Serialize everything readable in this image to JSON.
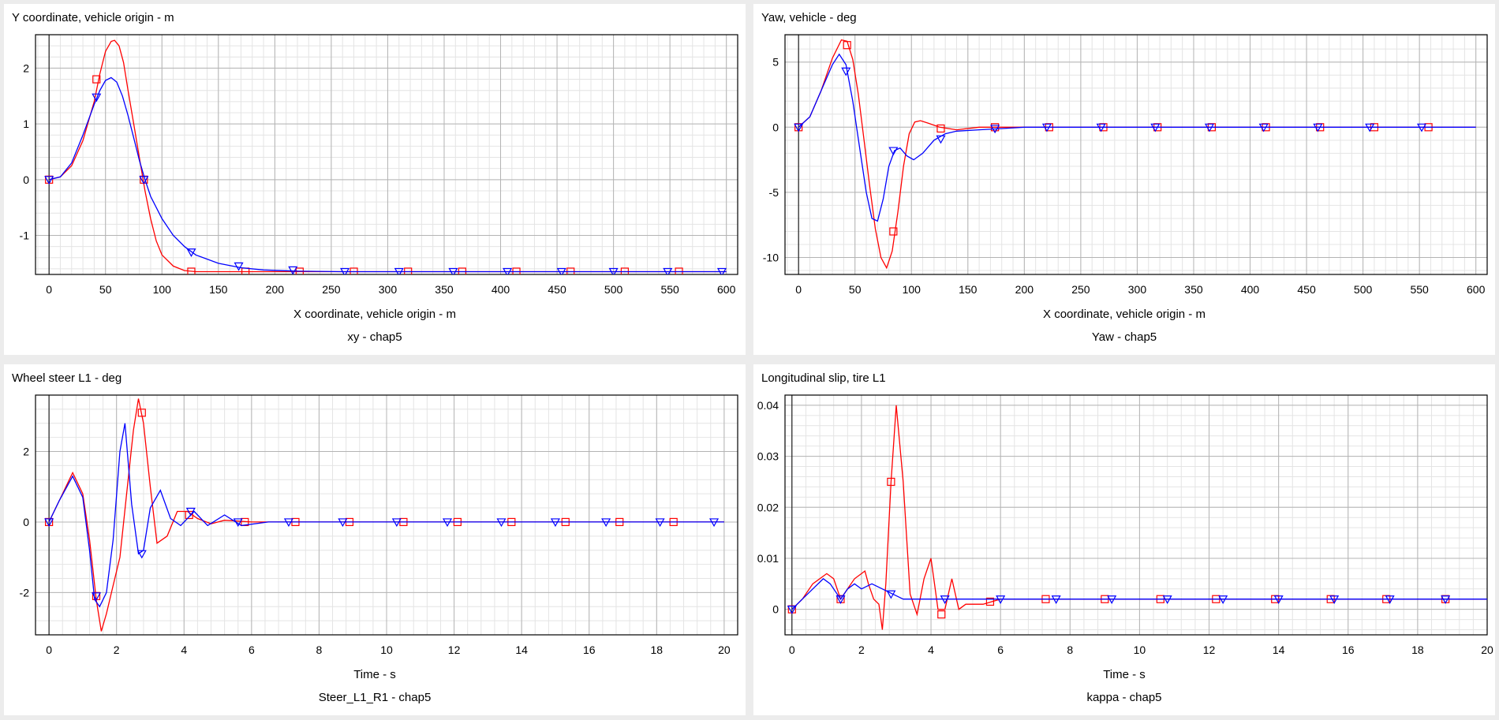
{
  "chart_data": [
    {
      "type": "line",
      "title": "Y coordinate, vehicle origin - m",
      "xlabel": "X coordinate, vehicle origin - m",
      "dataset_label": "xy - chap5",
      "xlim": [
        -12,
        610
      ],
      "ylim": [
        -1.7,
        2.6
      ],
      "xticks": [
        0,
        50,
        100,
        150,
        200,
        250,
        300,
        350,
        400,
        450,
        500,
        550,
        600
      ],
      "yticks": [
        -1,
        0,
        1,
        2
      ],
      "xminor": 10,
      "yminor": 0.2,
      "series": [
        {
          "name": "red",
          "color": "#ff0000",
          "marker": "square",
          "x": [
            0,
            10,
            20,
            30,
            40,
            45,
            50,
            55,
            58,
            62,
            66,
            70,
            75,
            80,
            85,
            90,
            95,
            100,
            110,
            120,
            130,
            150,
            200,
            300,
            400,
            500,
            600
          ],
          "y": [
            0,
            0.05,
            0.25,
            0.7,
            1.4,
            1.9,
            2.3,
            2.48,
            2.5,
            2.4,
            2.1,
            1.6,
            1.0,
            0.4,
            -0.2,
            -0.7,
            -1.1,
            -1.35,
            -1.55,
            -1.63,
            -1.65,
            -1.65,
            -1.65,
            -1.65,
            -1.65,
            -1.65,
            -1.65
          ],
          "markers_x": [
            0,
            42,
            84,
            126,
            174,
            222,
            270,
            318,
            366,
            414,
            462,
            510,
            558
          ],
          "markers_y": [
            0,
            1.8,
            0,
            -1.65,
            -1.65,
            -1.65,
            -1.65,
            -1.65,
            -1.65,
            -1.65,
            -1.65,
            -1.65,
            -1.65
          ]
        },
        {
          "name": "blue",
          "color": "#0000ff",
          "marker": "triangle-down",
          "x": [
            0,
            10,
            20,
            30,
            40,
            45,
            50,
            55,
            60,
            65,
            70,
            75,
            80,
            85,
            90,
            100,
            110,
            120,
            130,
            150,
            170,
            190,
            220,
            260,
            300,
            400,
            500,
            600
          ],
          "y": [
            0,
            0.05,
            0.3,
            0.8,
            1.35,
            1.6,
            1.78,
            1.83,
            1.75,
            1.5,
            1.15,
            0.75,
            0.35,
            0,
            -0.3,
            -0.7,
            -1.0,
            -1.2,
            -1.35,
            -1.5,
            -1.58,
            -1.62,
            -1.64,
            -1.65,
            -1.65,
            -1.65,
            -1.65,
            -1.65
          ],
          "markers_x": [
            0,
            42,
            84,
            126,
            168,
            216,
            262,
            310,
            358,
            406,
            454,
            500,
            548,
            596
          ],
          "markers_y": [
            0,
            1.48,
            0,
            -1.3,
            -1.55,
            -1.62,
            -1.65,
            -1.65,
            -1.65,
            -1.65,
            -1.65,
            -1.65,
            -1.65,
            -1.65
          ]
        }
      ]
    },
    {
      "type": "line",
      "title": "Yaw, vehicle - deg",
      "xlabel": "X coordinate, vehicle origin - m",
      "dataset_label": "Yaw - chap5",
      "xlim": [
        -12,
        610
      ],
      "ylim": [
        -11.3,
        7.1
      ],
      "xticks": [
        0,
        50,
        100,
        150,
        200,
        250,
        300,
        350,
        400,
        450,
        500,
        550,
        600
      ],
      "yticks": [
        -10,
        -5,
        0,
        5
      ],
      "xminor": 10,
      "yminor": 1,
      "series": [
        {
          "name": "red",
          "color": "#ff0000",
          "marker": "square",
          "x": [
            0,
            10,
            20,
            30,
            38,
            43,
            48,
            53,
            58,
            63,
            68,
            73,
            78,
            83,
            88,
            93,
            98,
            103,
            108,
            115,
            125,
            140,
            160,
            200,
            300,
            400,
            500,
            600
          ],
          "y": [
            0,
            0.8,
            2.8,
            5.3,
            6.7,
            6.6,
            5.2,
            2.5,
            -1.0,
            -4.5,
            -7.8,
            -10.0,
            -10.8,
            -9.5,
            -6.5,
            -3.0,
            -0.5,
            0.4,
            0.5,
            0.3,
            0.0,
            -0.2,
            0.0,
            0.0,
            0.0,
            0.0,
            0.0,
            0.0
          ],
          "markers_x": [
            0,
            43,
            84,
            126,
            174,
            222,
            270,
            318,
            366,
            414,
            462,
            510,
            558
          ],
          "markers_y": [
            0,
            6.3,
            -8.0,
            -0.1,
            0,
            0,
            0,
            0,
            0,
            0,
            0,
            0,
            0
          ]
        },
        {
          "name": "blue",
          "color": "#0000ff",
          "marker": "triangle-down",
          "x": [
            0,
            10,
            20,
            30,
            36,
            42,
            48,
            54,
            60,
            65,
            70,
            75,
            80,
            85,
            90,
            96,
            102,
            110,
            120,
            130,
            140,
            160,
            180,
            200,
            300,
            400,
            500,
            600
          ],
          "y": [
            0,
            0.8,
            2.8,
            4.8,
            5.6,
            4.8,
            2.0,
            -1.5,
            -5.0,
            -7.0,
            -7.2,
            -5.5,
            -3.0,
            -1.8,
            -1.6,
            -2.2,
            -2.5,
            -2.0,
            -1.0,
            -0.5,
            -0.3,
            -0.2,
            -0.1,
            0.0,
            0.0,
            0.0,
            0.0,
            0.0
          ],
          "markers_x": [
            0,
            42,
            84,
            126,
            174,
            220,
            268,
            316,
            364,
            412,
            460,
            506,
            552
          ],
          "markers_y": [
            0,
            4.3,
            -1.8,
            -0.9,
            -0.1,
            0,
            0,
            0,
            0,
            0,
            0,
            0,
            0
          ]
        }
      ]
    },
    {
      "type": "line",
      "title": "Wheel steer L1 - deg",
      "xlabel": "Time - s",
      "dataset_label": "Steer_L1_R1 - chap5",
      "xlim": [
        -0.4,
        20.4
      ],
      "ylim": [
        -3.2,
        3.6
      ],
      "xticks": [
        0,
        2,
        4,
        6,
        8,
        10,
        12,
        14,
        16,
        18,
        20
      ],
      "yticks": [
        -2,
        0,
        2
      ],
      "xminor": 0.4,
      "yminor": 0.4,
      "series": [
        {
          "name": "red",
          "color": "#ff0000",
          "marker": "square",
          "x": [
            0,
            0.3,
            0.7,
            1.0,
            1.2,
            1.4,
            1.55,
            1.7,
            1.9,
            2.1,
            2.3,
            2.5,
            2.65,
            2.8,
            3.0,
            3.2,
            3.5,
            3.8,
            4.1,
            4.4,
            4.8,
            5.2,
            6,
            8,
            10,
            12,
            14,
            16,
            18,
            20
          ],
          "y": [
            0,
            0.6,
            1.4,
            0.8,
            -0.5,
            -2.2,
            -3.1,
            -2.6,
            -1.8,
            -1.0,
            0.8,
            2.6,
            3.5,
            2.8,
            1.0,
            -0.6,
            -0.4,
            0.3,
            0.3,
            0.1,
            -0.05,
            0.05,
            0,
            0,
            0,
            0,
            0,
            0,
            0,
            0
          ],
          "markers_x": [
            0,
            1.4,
            2.75,
            4.15,
            5.8,
            7.3,
            8.9,
            10.5,
            12.1,
            13.7,
            15.3,
            16.9,
            18.5
          ],
          "markers_y": [
            0,
            -2.1,
            3.1,
            0.2,
            0,
            0,
            0,
            0,
            0,
            0,
            0,
            0,
            0
          ]
        },
        {
          "name": "blue",
          "color": "#0000ff",
          "marker": "triangle-down",
          "x": [
            0,
            0.3,
            0.7,
            1.0,
            1.2,
            1.35,
            1.5,
            1.7,
            1.9,
            2.1,
            2.25,
            2.45,
            2.65,
            2.8,
            3.0,
            3.3,
            3.6,
            3.9,
            4.3,
            4.7,
            5.2,
            5.7,
            6.5,
            8,
            10,
            12,
            14,
            16,
            18,
            20
          ],
          "y": [
            0,
            0.6,
            1.3,
            0.7,
            -0.8,
            -2.2,
            -2.4,
            -2.0,
            -0.5,
            2.0,
            2.8,
            0.5,
            -0.9,
            -0.8,
            0.4,
            0.9,
            0.1,
            -0.1,
            0.3,
            -0.1,
            0.2,
            -0.1,
            0,
            0,
            0,
            0,
            0,
            0,
            0,
            0
          ],
          "markers_x": [
            0,
            1.4,
            2.75,
            4.2,
            5.6,
            7.1,
            8.7,
            10.3,
            11.8,
            13.4,
            15.0,
            16.5,
            18.1,
            19.7
          ],
          "markers_y": [
            0,
            -2.1,
            -0.9,
            0.3,
            0,
            0,
            0,
            0,
            0,
            0,
            0,
            0,
            0,
            0
          ]
        }
      ]
    },
    {
      "type": "line",
      "title": "Longitudinal slip, tire L1",
      "xlabel": "Time - s",
      "dataset_label": "kappa - chap5",
      "xlim": [
        -0.2,
        20.0
      ],
      "ylim": [
        -0.005,
        0.042
      ],
      "xticks": [
        0,
        2,
        4,
        6,
        8,
        10,
        12,
        14,
        16,
        18,
        20
      ],
      "yticks": [
        0,
        0.01,
        0.02,
        0.03,
        0.04
      ],
      "xminor": 0.4,
      "yminor": 0.002,
      "series": [
        {
          "name": "red",
          "color": "#ff0000",
          "marker": "square",
          "x": [
            0,
            0.3,
            0.6,
            1.0,
            1.2,
            1.4,
            1.6,
            1.8,
            2.0,
            2.1,
            2.2,
            2.35,
            2.5,
            2.6,
            2.7,
            2.85,
            3.0,
            3.2,
            3.4,
            3.6,
            3.8,
            4.0,
            4.1,
            4.2,
            4.4,
            4.6,
            4.8,
            5.0,
            5.5,
            6,
            7,
            10,
            14,
            20
          ],
          "y": [
            0,
            0.002,
            0.005,
            0.007,
            0.006,
            0.002,
            0.004,
            0.006,
            0.007,
            0.0075,
            0.005,
            0.002,
            0.001,
            -0.004,
            0.005,
            0.025,
            0.04,
            0.025,
            0.003,
            -0.001,
            0.006,
            0.01,
            0.005,
            0.0,
            0.0,
            0.006,
            0.0,
            0.001,
            0.001,
            0.002,
            0.002,
            0.002,
            0.002,
            0.002
          ],
          "markers_x": [
            0,
            1.4,
            2.85,
            4.3,
            5.7,
            7.3,
            9.0,
            10.6,
            12.2,
            13.9,
            15.5,
            17.1,
            18.8
          ],
          "markers_y": [
            0,
            0.002,
            0.025,
            -0.001,
            0.0015,
            0.002,
            0.002,
            0.002,
            0.002,
            0.002,
            0.002,
            0.002,
            0.002
          ]
        },
        {
          "name": "blue",
          "color": "#0000ff",
          "marker": "triangle-down",
          "x": [
            0,
            0.3,
            0.6,
            0.9,
            1.1,
            1.4,
            1.6,
            1.8,
            2.0,
            2.3,
            2.6,
            2.9,
            3.2,
            3.6,
            4.0,
            5,
            6,
            8,
            10,
            14,
            20
          ],
          "y": [
            0,
            0.002,
            0.004,
            0.006,
            0.005,
            0.002,
            0.004,
            0.005,
            0.004,
            0.005,
            0.004,
            0.003,
            0.002,
            0.002,
            0.002,
            0.002,
            0.002,
            0.002,
            0.002,
            0.002,
            0.002
          ],
          "markers_x": [
            0,
            1.4,
            2.85,
            4.4,
            6.0,
            7.6,
            9.2,
            10.8,
            12.4,
            14.0,
            15.6,
            17.2,
            18.8
          ],
          "markers_y": [
            0,
            0.002,
            0.003,
            0.002,
            0.002,
            0.002,
            0.002,
            0.002,
            0.002,
            0.002,
            0.002,
            0.002,
            0.002
          ]
        }
      ]
    }
  ]
}
